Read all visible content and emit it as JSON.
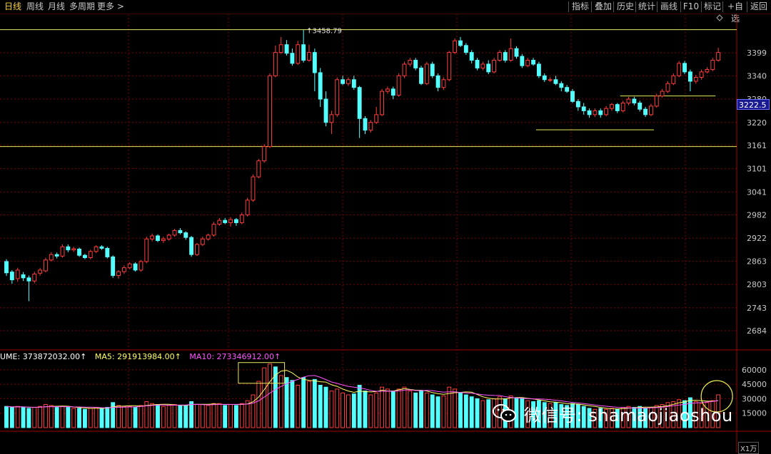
{
  "toolbar": {
    "tabs": [
      {
        "label": "日线",
        "active": true
      },
      {
        "label": "周线",
        "active": false
      },
      {
        "label": "月线",
        "active": false
      },
      {
        "label": "多周期",
        "active": false
      },
      {
        "label": "更多 >",
        "active": false
      }
    ],
    "buttons": [
      "指标",
      "叠加",
      "历史",
      "统计",
      "画线",
      "F10",
      "标记",
      "+自选",
      "返回"
    ]
  },
  "price_tag": "3222.5",
  "volume_legend": {
    "vol": "UME: 373872032.00↑",
    "ma5": "MA5: 291913984.00↑",
    "ma10": "MA10: 273346912.00↑"
  },
  "unit_label": "X1万",
  "watermark": "微信号: shamaojiaoshou",
  "colors": {
    "up": "#ff3c3c",
    "down": "#54ffff",
    "ma5": "#ffff66",
    "ma10": "#ff55ff",
    "grid": "#7a0000",
    "annotation": "#e8e85a",
    "watermark_icon": "#ffffff"
  },
  "chart_data": {
    "type": "candlestick",
    "price_axis": {
      "ticks": [
        3399,
        3340,
        3280,
        3220,
        3161,
        3101,
        3041,
        2982,
        2922,
        2863,
        2803,
        2743,
        2684
      ],
      "range": [
        2640,
        3480
      ]
    },
    "volume_axis": {
      "ticks": [
        60000,
        45000,
        30000,
        15000
      ],
      "range": [
        0,
        68000
      ],
      "unit": "X1万"
    },
    "high_annotation": {
      "label": "3458.79",
      "value": 3458.79
    },
    "horizontal_levels": [
      3458.79,
      3158
    ],
    "support_lines": [
      {
        "value": 3201,
        "from_index": 95,
        "to_index": 115
      },
      {
        "value": 3288,
        "from_index": 110,
        "to_index": 126
      }
    ],
    "highlight_box": {
      "from_index": 42,
      "to_index": 49,
      "vol_range": [
        46000,
        66000
      ]
    },
    "highlight_circle": {
      "index": 127,
      "vol": 34000
    },
    "candles": [
      [
        2862,
        2833,
        2868,
        2825
      ],
      [
        2835,
        2815,
        2840,
        2805
      ],
      [
        2818,
        2840,
        2846,
        2810
      ],
      [
        2828,
        2820,
        2835,
        2812
      ],
      [
        2820,
        2812,
        2826,
        2760
      ],
      [
        2812,
        2830,
        2836,
        2806
      ],
      [
        2832,
        2840,
        2846,
        2826
      ],
      [
        2838,
        2866,
        2872,
        2834
      ],
      [
        2866,
        2880,
        2886,
        2862
      ],
      [
        2880,
        2876,
        2885,
        2870
      ],
      [
        2876,
        2900,
        2906,
        2872
      ],
      [
        2900,
        2892,
        2906,
        2886
      ],
      [
        2892,
        2895,
        2900,
        2887
      ],
      [
        2894,
        2878,
        2898,
        2874
      ],
      [
        2878,
        2872,
        2882,
        2868
      ],
      [
        2872,
        2888,
        2892,
        2868
      ],
      [
        2888,
        2900,
        2904,
        2884
      ],
      [
        2900,
        2896,
        2904,
        2892
      ],
      [
        2896,
        2874,
        2900,
        2870
      ],
      [
        2874,
        2826,
        2878,
        2820
      ],
      [
        2826,
        2836,
        2840,
        2818
      ],
      [
        2836,
        2846,
        2852,
        2830
      ],
      [
        2846,
        2856,
        2860,
        2842
      ],
      [
        2856,
        2840,
        2860,
        2836
      ],
      [
        2840,
        2862,
        2866,
        2836
      ],
      [
        2862,
        2920,
        2926,
        2858
      ],
      [
        2920,
        2928,
        2934,
        2914
      ],
      [
        2928,
        2916,
        2932,
        2912
      ],
      [
        2916,
        2920,
        2926,
        2910
      ],
      [
        2920,
        2930,
        2934,
        2916
      ],
      [
        2930,
        2942,
        2946,
        2926
      ],
      [
        2942,
        2936,
        2948,
        2932
      ],
      [
        2936,
        2924,
        2940,
        2918
      ],
      [
        2924,
        2880,
        2928,
        2874
      ],
      [
        2880,
        2906,
        2910,
        2876
      ],
      [
        2906,
        2920,
        2926,
        2902
      ],
      [
        2920,
        2930,
        2934,
        2916
      ],
      [
        2930,
        2958,
        2964,
        2926
      ],
      [
        2958,
        2968,
        2974,
        2954
      ],
      [
        2968,
        2962,
        2974,
        2958
      ],
      [
        2962,
        2970,
        2976,
        2952
      ],
      [
        2970,
        2962,
        2974,
        2954
      ],
      [
        2962,
        2982,
        2988,
        2958
      ],
      [
        2982,
        3020,
        3026,
        2978
      ],
      [
        3020,
        3080,
        3086,
        3016
      ],
      [
        3080,
        3121,
        3126,
        3076
      ],
      [
        3121,
        3158,
        3164,
        3116
      ],
      [
        3158,
        3340,
        3346,
        3154
      ],
      [
        3340,
        3400,
        3418,
        3336
      ],
      [
        3400,
        3420,
        3440,
        3396
      ],
      [
        3420,
        3398,
        3432,
        3392
      ],
      [
        3398,
        3372,
        3410,
        3366
      ],
      [
        3372,
        3420,
        3430,
        3368
      ],
      [
        3420,
        3380,
        3458,
        3374
      ],
      [
        3380,
        3400,
        3420,
        3376
      ],
      [
        3400,
        3348,
        3410,
        3300
      ],
      [
        3348,
        3280,
        3360,
        3260
      ],
      [
        3280,
        3220,
        3300,
        3210
      ],
      [
        3220,
        3240,
        3250,
        3190
      ],
      [
        3240,
        3330,
        3336,
        3234
      ],
      [
        3330,
        3320,
        3340,
        3316
      ],
      [
        3320,
        3330,
        3336,
        3314
      ],
      [
        3330,
        3310,
        3340,
        3304
      ],
      [
        3310,
        3230,
        3314,
        3180
      ],
      [
        3230,
        3200,
        3236,
        3190
      ],
      [
        3200,
        3220,
        3226,
        3194
      ],
      [
        3220,
        3240,
        3260,
        3216
      ],
      [
        3240,
        3300,
        3306,
        3236
      ],
      [
        3300,
        3306,
        3312,
        3294
      ],
      [
        3306,
        3290,
        3312,
        3280
      ],
      [
        3290,
        3340,
        3346,
        3286
      ],
      [
        3340,
        3370,
        3376,
        3334
      ],
      [
        3370,
        3380,
        3386,
        3364
      ],
      [
        3380,
        3360,
        3386,
        3354
      ],
      [
        3360,
        3320,
        3366,
        3316
      ],
      [
        3320,
        3370,
        3376,
        3316
      ],
      [
        3370,
        3340,
        3376,
        3334
      ],
      [
        3340,
        3310,
        3346,
        3300
      ],
      [
        3310,
        3330,
        3336,
        3304
      ],
      [
        3330,
        3400,
        3404,
        3326
      ],
      [
        3400,
        3430,
        3436,
        3396
      ],
      [
        3430,
        3418,
        3440,
        3414
      ],
      [
        3418,
        3400,
        3424,
        3394
      ],
      [
        3400,
        3380,
        3406,
        3372
      ],
      [
        3380,
        3360,
        3386,
        3354
      ],
      [
        3360,
        3370,
        3376,
        3354
      ],
      [
        3370,
        3350,
        3380,
        3344
      ],
      [
        3350,
        3380,
        3386,
        3346
      ],
      [
        3380,
        3400,
        3406,
        3376
      ],
      [
        3400,
        3380,
        3406,
        3374
      ],
      [
        3380,
        3410,
        3436,
        3376
      ],
      [
        3410,
        3390,
        3416,
        3384
      ],
      [
        3390,
        3366,
        3396,
        3360
      ],
      [
        3366,
        3380,
        3386,
        3362
      ],
      [
        3380,
        3370,
        3386,
        3366
      ],
      [
        3370,
        3340,
        3376,
        3334
      ],
      [
        3340,
        3330,
        3346,
        3324
      ],
      [
        3330,
        3330,
        3336,
        3324
      ],
      [
        3330,
        3320,
        3340,
        3316
      ],
      [
        3320,
        3310,
        3326,
        3300
      ],
      [
        3310,
        3300,
        3316,
        3296
      ],
      [
        3300,
        3274,
        3306,
        3270
      ],
      [
        3274,
        3260,
        3280,
        3250
      ],
      [
        3260,
        3250,
        3270,
        3240
      ],
      [
        3250,
        3240,
        3256,
        3232
      ],
      [
        3240,
        3250,
        3256,
        3234
      ],
      [
        3250,
        3240,
        3256,
        3232
      ],
      [
        3240,
        3256,
        3262,
        3236
      ],
      [
        3256,
        3266,
        3270,
        3250
      ],
      [
        3266,
        3250,
        3270,
        3244
      ],
      [
        3250,
        3270,
        3276,
        3246
      ],
      [
        3270,
        3280,
        3286,
        3264
      ],
      [
        3280,
        3270,
        3286,
        3264
      ],
      [
        3270,
        3254,
        3276,
        3248
      ],
      [
        3254,
        3240,
        3260,
        3234
      ],
      [
        3240,
        3262,
        3268,
        3236
      ],
      [
        3262,
        3288,
        3294,
        3258
      ],
      [
        3288,
        3300,
        3306,
        3284
      ],
      [
        3300,
        3320,
        3326,
        3296
      ],
      [
        3320,
        3340,
        3346,
        3316
      ],
      [
        3340,
        3372,
        3378,
        3336
      ],
      [
        3372,
        3350,
        3378,
        3344
      ],
      [
        3350,
        3326,
        3356,
        3300
      ],
      [
        3326,
        3336,
        3342,
        3320
      ],
      [
        3336,
        3350,
        3356,
        3330
      ],
      [
        3350,
        3356,
        3362,
        3346
      ],
      [
        3356,
        3380,
        3386,
        3352
      ],
      [
        3380,
        3400,
        3412,
        3376
      ]
    ],
    "volumes": [
      [
        22000,
        1
      ],
      [
        21000,
        1
      ],
      [
        22000,
        0
      ],
      [
        21000,
        1
      ],
      [
        20000,
        1
      ],
      [
        21000,
        0
      ],
      [
        22000,
        0
      ],
      [
        24000,
        0
      ],
      [
        23000,
        0
      ],
      [
        21000,
        1
      ],
      [
        22000,
        0
      ],
      [
        21000,
        1
      ],
      [
        20000,
        0
      ],
      [
        20000,
        1
      ],
      [
        19000,
        1
      ],
      [
        20000,
        0
      ],
      [
        21000,
        0
      ],
      [
        20000,
        1
      ],
      [
        21000,
        1
      ],
      [
        26000,
        1
      ],
      [
        23000,
        0
      ],
      [
        22000,
        0
      ],
      [
        22000,
        0
      ],
      [
        21000,
        1
      ],
      [
        23000,
        0
      ],
      [
        27000,
        0
      ],
      [
        25000,
        0
      ],
      [
        24000,
        1
      ],
      [
        22000,
        0
      ],
      [
        23000,
        0
      ],
      [
        24000,
        0
      ],
      [
        23000,
        1
      ],
      [
        23000,
        1
      ],
      [
        27000,
        1
      ],
      [
        24000,
        0
      ],
      [
        24000,
        0
      ],
      [
        23000,
        0
      ],
      [
        25000,
        0
      ],
      [
        25000,
        0
      ],
      [
        23000,
        1
      ],
      [
        24000,
        0
      ],
      [
        23000,
        1
      ],
      [
        25000,
        0
      ],
      [
        28000,
        0
      ],
      [
        34000,
        0
      ],
      [
        48000,
        0
      ],
      [
        62000,
        0
      ],
      [
        66000,
        0
      ],
      [
        63000,
        1
      ],
      [
        54000,
        0
      ],
      [
        52000,
        1
      ],
      [
        49000,
        1
      ],
      [
        44000,
        0
      ],
      [
        52000,
        1
      ],
      [
        48000,
        0
      ],
      [
        50000,
        1
      ],
      [
        44000,
        1
      ],
      [
        42000,
        1
      ],
      [
        38000,
        0
      ],
      [
        40000,
        0
      ],
      [
        36000,
        0
      ],
      [
        34000,
        0
      ],
      [
        35000,
        1
      ],
      [
        44000,
        1
      ],
      [
        38000,
        1
      ],
      [
        34000,
        0
      ],
      [
        36000,
        0
      ],
      [
        42000,
        0
      ],
      [
        40000,
        0
      ],
      [
        38000,
        1
      ],
      [
        40000,
        0
      ],
      [
        42000,
        0
      ],
      [
        38000,
        0
      ],
      [
        36000,
        1
      ],
      [
        38000,
        1
      ],
      [
        36000,
        0
      ],
      [
        34000,
        1
      ],
      [
        32000,
        1
      ],
      [
        33000,
        0
      ],
      [
        42000,
        0
      ],
      [
        40000,
        0
      ],
      [
        36000,
        1
      ],
      [
        34000,
        1
      ],
      [
        32000,
        1
      ],
      [
        30000,
        1
      ],
      [
        28000,
        0
      ],
      [
        29000,
        1
      ],
      [
        30000,
        0
      ],
      [
        32000,
        0
      ],
      [
        30000,
        1
      ],
      [
        33000,
        0
      ],
      [
        31000,
        1
      ],
      [
        30000,
        1
      ],
      [
        28000,
        0
      ],
      [
        27000,
        1
      ],
      [
        28000,
        1
      ],
      [
        26000,
        1
      ],
      [
        25000,
        0
      ],
      [
        26000,
        1
      ],
      [
        24000,
        1
      ],
      [
        23000,
        1
      ],
      [
        25000,
        1
      ],
      [
        24000,
        1
      ],
      [
        22000,
        1
      ],
      [
        20000,
        1
      ],
      [
        19000,
        0
      ],
      [
        20000,
        1
      ],
      [
        19000,
        0
      ],
      [
        20000,
        0
      ],
      [
        19000,
        1
      ],
      [
        21000,
        0
      ],
      [
        22000,
        0
      ],
      [
        21000,
        1
      ],
      [
        22000,
        1
      ],
      [
        20000,
        1
      ],
      [
        21000,
        0
      ],
      [
        23000,
        0
      ],
      [
        24000,
        0
      ],
      [
        26000,
        0
      ],
      [
        27000,
        0
      ],
      [
        29000,
        0
      ],
      [
        28000,
        1
      ],
      [
        31000,
        1
      ],
      [
        27000,
        0
      ],
      [
        25000,
        0
      ],
      [
        26000,
        0
      ],
      [
        28000,
        0
      ],
      [
        34000,
        0
      ]
    ]
  }
}
